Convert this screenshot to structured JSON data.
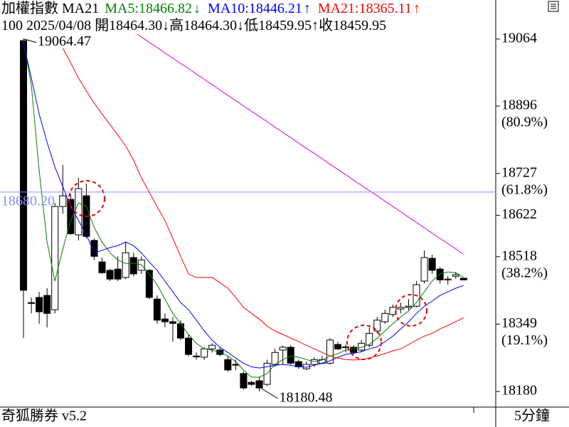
{
  "chart_data": {
    "type": "candlestick",
    "title": "加權指數 MA21",
    "info": "100 2025/04/08 開18464.30↓高18464.30↓低18459.95↑收18459.95",
    "categories": [
      null,
      null,
      null,
      null,
      null,
      null,
      null,
      null,
      null,
      null,
      null,
      null,
      null,
      null,
      null,
      null,
      null,
      null,
      null,
      null,
      null,
      null,
      null,
      null,
      null,
      null,
      null,
      null,
      null,
      null,
      null,
      null,
      null,
      null,
      null,
      null,
      null,
      null,
      null,
      null,
      null,
      null,
      null,
      null,
      null,
      null,
      null,
      null,
      null,
      null,
      null,
      null,
      null,
      null,
      null,
      null,
      null
    ],
    "open": [
      19060,
      18403,
      18416,
      18421,
      18385,
      18644,
      18662,
      18573,
      18671,
      18559,
      18505,
      18484,
      18487,
      18466,
      18516,
      18484,
      18484,
      18412,
      18362,
      18355,
      18350,
      18314,
      18269,
      18266,
      18287,
      18284,
      18260,
      18248,
      18225,
      18203,
      18207,
      18198,
      18248,
      18284,
      18291,
      18255,
      18237,
      18248,
      18251,
      18251,
      18298,
      18291,
      18291,
      18284,
      18296,
      18332,
      18355,
      18373,
      18387,
      18391,
      18394,
      18457,
      18514,
      18487,
      18460,
      18469,
      18464.3
    ],
    "high": [
      19064.47,
      18416,
      18430,
      18439,
      18653,
      18748,
      18676,
      18716,
      18701,
      18564,
      18516,
      18487,
      18519,
      18555,
      18528,
      18519,
      18487,
      18421,
      18376,
      18367,
      18359,
      18323,
      18278,
      18291,
      18301,
      18291,
      18269,
      18260,
      18230,
      18207,
      18216,
      18260,
      18287,
      18296,
      18296,
      18260,
      18255,
      18266,
      18269,
      18314,
      18305,
      18298,
      18296,
      18309,
      18341,
      18367,
      18385,
      18398,
      18403,
      18412,
      18457,
      18534,
      18523,
      18492,
      18469,
      18480,
      18464.3
    ],
    "low": [
      18314,
      18376,
      18350,
      18341,
      18376,
      18626,
      18573,
      18559,
      18564,
      18510,
      18475,
      18457,
      18457,
      18462,
      18469,
      18475,
      18412,
      18350,
      18341,
      18305,
      18309,
      18269,
      18260,
      18260,
      18278,
      18269,
      18230,
      18234,
      18185,
      18194,
      18180.48,
      18194,
      18242,
      18248,
      18248,
      18237,
      18234,
      18242,
      18248,
      18248,
      18284,
      18278,
      18273,
      18278,
      18291,
      18326,
      18350,
      18367,
      18376,
      18384,
      18391,
      18451,
      18475,
      18451,
      18448,
      18462,
      18459.95
    ],
    "close": [
      18434,
      18401,
      18380,
      18376,
      18644,
      18671,
      18576,
      18689,
      18569,
      18519,
      18478,
      18462,
      18462,
      18528,
      18475,
      18510,
      18416,
      18359,
      18355,
      18351,
      18314,
      18273,
      18267,
      18287,
      18296,
      18273,
      18234,
      18246,
      18189,
      18198,
      18189,
      18251,
      18278,
      18291,
      18251,
      18242,
      18248,
      18260,
      18260,
      18309,
      18287,
      18292,
      18278,
      18301,
      18326,
      18359,
      18376,
      18391,
      18391,
      18394,
      18448,
      18516,
      18484,
      18460,
      18462,
      18473,
      18459.95
    ],
    "up_color": "#ffffff",
    "down_color": "#000000",
    "series": [
      {
        "name": "MA5:18466.82",
        "trend": "↓",
        "color": "#008000",
        "values": [
          19059,
          18948,
          18734,
          18555,
          18457,
          18537,
          18609,
          18653,
          18644,
          18591,
          18555,
          18528,
          18510,
          18501,
          18501,
          18498,
          18475,
          18448,
          18412,
          18376,
          18350,
          18323,
          18301,
          18287,
          18284,
          18278,
          18269,
          18255,
          18234,
          18216,
          18216,
          18225,
          18248,
          18260,
          18269,
          18266,
          18260,
          18255,
          18259,
          18269,
          18275,
          18284,
          18287,
          18291,
          18298,
          18314,
          18332,
          18350,
          18367,
          18382,
          18403,
          18430,
          18457,
          18475,
          18480,
          18478,
          18466.82
        ]
      },
      {
        "name": "MA10:18446.21",
        "trend": "↑",
        "color": "#0000ff",
        "values": [
          19055,
          18966,
          18876,
          18805,
          18743,
          18694,
          18644,
          18609,
          18573,
          18528,
          18534,
          18541,
          18546,
          18555,
          18546,
          18528,
          18505,
          18484,
          18457,
          18430,
          18403,
          18385,
          18359,
          18332,
          18309,
          18291,
          18278,
          18264,
          18251,
          18242,
          18239,
          18242,
          18246,
          18248,
          18246,
          18242,
          18241,
          18246,
          18251,
          18257,
          18266,
          18273,
          18276,
          18280,
          18287,
          18292,
          18305,
          18319,
          18337,
          18355,
          18376,
          18394,
          18407,
          18421,
          18430,
          18439,
          18446.21
        ]
      },
      {
        "name": "MA21:18365.11",
        "trend": "↑",
        "color": "#ff0000",
        "values": [
          null,
          null,
          null,
          null,
          null,
          19041,
          19005,
          18966,
          18934,
          18903,
          18876,
          18850,
          18823,
          18796,
          18760,
          18716,
          18680,
          18644,
          18609,
          18564,
          18519,
          18475,
          18466,
          18466,
          18466,
          18453,
          18439,
          18416,
          18391,
          18376,
          18362,
          18344,
          18332,
          18323,
          18314,
          18305,
          18296,
          18287,
          18278,
          18269,
          18264,
          18260,
          18259,
          18260,
          18264,
          18269,
          18275,
          18282,
          18287,
          18298,
          18309,
          18319,
          18326,
          18337,
          18346,
          18355,
          18365.11
        ]
      },
      {
        "color": "#e000e0",
        "values": [
          null,
          null,
          null,
          null,
          null,
          null,
          null,
          null,
          null,
          null,
          null,
          null,
          null,
          19096,
          19083,
          19069,
          19056,
          19043,
          19029,
          19016,
          19003,
          18990,
          18976,
          18963,
          18950,
          18936,
          18923,
          18910,
          18896,
          18883,
          18870,
          18857,
          18843,
          18830,
          18817,
          18803,
          18790,
          18777,
          18764,
          18750,
          18737,
          18724,
          18710,
          18697,
          18684,
          18671,
          18657,
          18644,
          18631,
          18617,
          18604,
          18591,
          18577,
          18564,
          18551,
          18538,
          18524
        ]
      }
    ],
    "ylim": [
      18141,
      19162
    ],
    "yticks": [
      19064,
      18896,
      18727,
      18622,
      18518,
      18349,
      18180
    ],
    "ytick_notes": [
      {
        "value": 18896,
        "label": "(80.9%)"
      },
      {
        "value": 18727,
        "label": "(61.8%)"
      },
      {
        "value": 18518,
        "label": "(38.2%)"
      },
      {
        "value": 18349,
        "label": "(19.1%)"
      }
    ],
    "hline": {
      "value": 18680.2,
      "label": "18680.20",
      "color": "#8c8cff"
    },
    "annotations": [
      {
        "value": 19064.47,
        "label": "19064.47"
      },
      {
        "value": 18180.48,
        "label": "18180.48"
      }
    ]
  },
  "footer": {
    "app": "奇狐勝券 v5.2",
    "period": "5分鐘"
  }
}
